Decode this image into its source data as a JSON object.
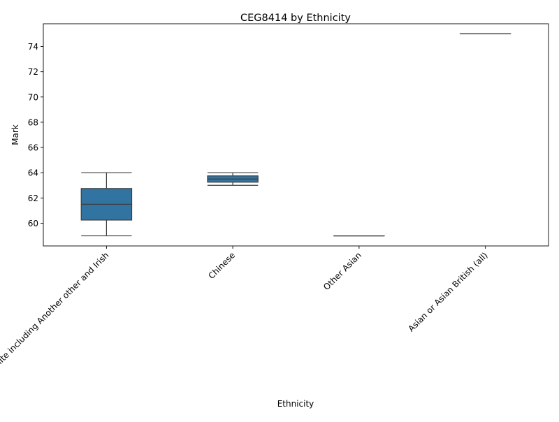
{
  "chart_data": {
    "type": "box",
    "title": "CEG8414 by Ethnicity",
    "xlabel": "Ethnicity",
    "ylabel": "Mark",
    "ylim": [
      58.2,
      75.8
    ],
    "yticks": [
      60,
      62,
      64,
      66,
      68,
      70,
      72,
      74
    ],
    "grid": false,
    "box_color": "#3274a1",
    "categories": [
      "White including Another other and Irish",
      "Chinese",
      "Other Asian",
      "Asian or Asian British (all)"
    ],
    "boxes": [
      {
        "category": "White including Another other and Irish",
        "min": 59,
        "q1": 60.25,
        "median": 61.5,
        "q3": 62.75,
        "max": 64
      },
      {
        "category": "Chinese",
        "min": 63,
        "q1": 63.25,
        "median": 63.5,
        "q3": 63.75,
        "max": 64
      },
      {
        "category": "Other Asian",
        "min": 59,
        "q1": 59,
        "median": 59,
        "q3": 59,
        "max": 59
      },
      {
        "category": "Asian or Asian British (all)",
        "min": 75,
        "q1": 75,
        "median": 75,
        "q3": 75,
        "max": 75
      }
    ]
  }
}
